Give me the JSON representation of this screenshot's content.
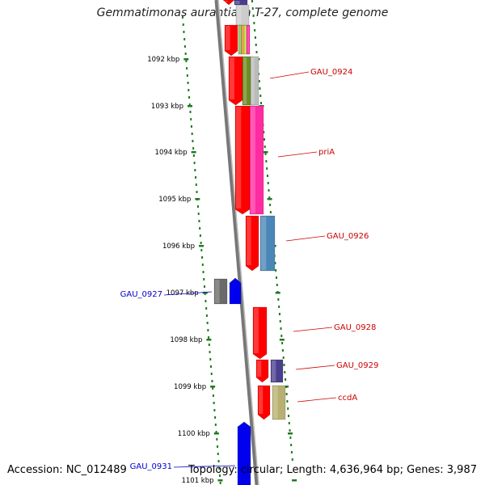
{
  "title": "Gemmatimonas aurantiaca T-27, complete genome",
  "accession": "Accession: NC_012489",
  "summary": "Topology: circular; Length: 4,636,964 bp; Genes: 3,987",
  "colors": {
    "backbone": "#8c8c8c",
    "tick": "#1f7a1f",
    "cds": "#ff0000",
    "label_red": "#cc0000",
    "label_blue": "#0000cc"
  },
  "ticks": [
    {
      "label": "1092 kbp"
    },
    {
      "label": "1093 kbp"
    },
    {
      "label": "1094 kbp"
    },
    {
      "label": "1095 kbp"
    },
    {
      "label": "1096 kbp"
    },
    {
      "label": "1097 kbp"
    },
    {
      "label": "1098 kbp"
    },
    {
      "label": "1099 kbp"
    },
    {
      "label": "1100 kbp"
    },
    {
      "label": "1101 kbp"
    }
  ],
  "gene_labels": [
    {
      "text": "GAU_0924"
    },
    {
      "text": "priA"
    },
    {
      "text": "GAU_0926"
    },
    {
      "text": "GAU_0927"
    },
    {
      "text": "GAU_0928"
    },
    {
      "text": "GAU_0929"
    },
    {
      "text": "ccdA"
    },
    {
      "text": "GAU_0931"
    }
  ]
}
